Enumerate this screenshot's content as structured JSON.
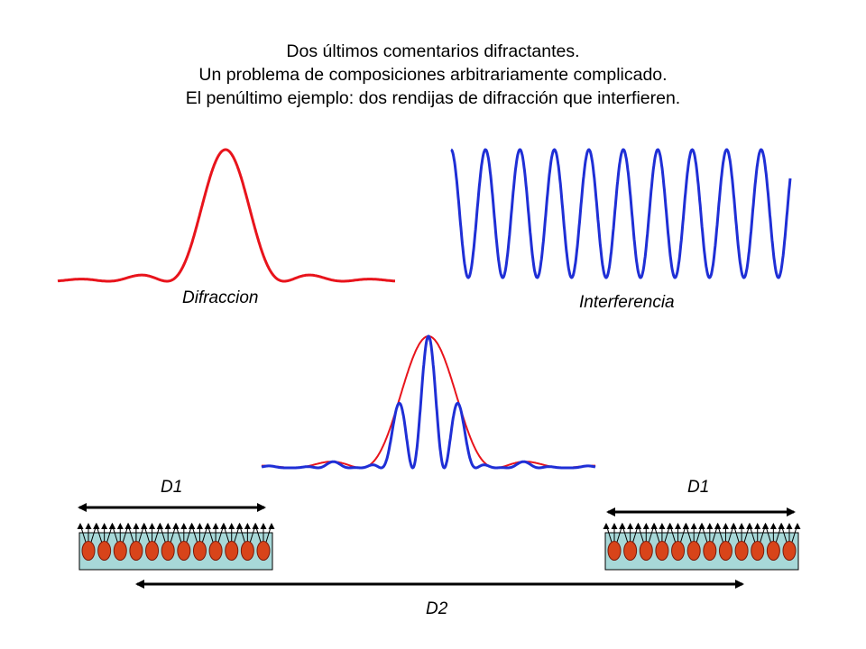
{
  "title_lines": [
    "Dos últimos comentarios difractantes.",
    "Un problema de composiciones arbitrariamente complicado.",
    "El penúltimo ejemplo: dos rendijas de difracción que interfieren."
  ],
  "labels": {
    "diffraction": "Difraccion",
    "interference": "Interferencia",
    "d1_left": "D1",
    "d1_right": "D1",
    "d2": "D2"
  },
  "colors": {
    "diffraction_curve": "#e8141c",
    "interference_curve": "#1f2fd6",
    "slit_fill": "#a7d8d8",
    "emitter_fill": "#d8441a",
    "emitter_stroke": "#7a1a0a",
    "arrow": "#000000"
  },
  "slit_emitter_count": 12
}
